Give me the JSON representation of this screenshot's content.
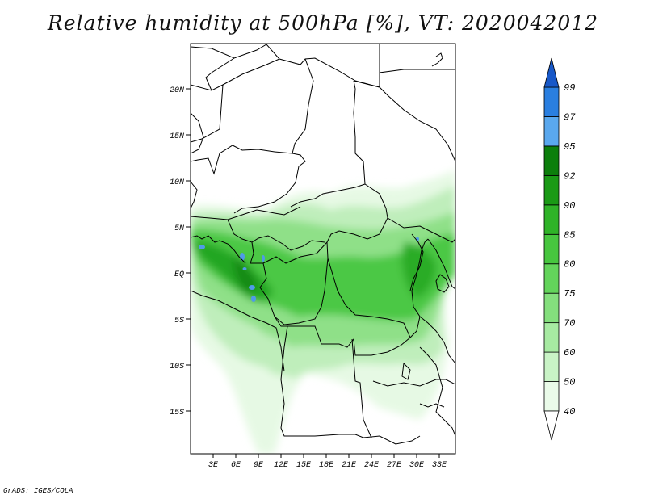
{
  "title": "Relative humidity at 500hPa [%], VT: 2020042012",
  "credit": "GrADS: IGES/COLA",
  "map": {
    "lat_labels": [
      "20N",
      "15N",
      "10N",
      "5N",
      "EQ",
      "5S",
      "10S",
      "15S"
    ],
    "lon_labels": [
      "3E",
      "6E",
      "9E",
      "12E",
      "15E",
      "18E",
      "21E",
      "24E",
      "27E",
      "30E",
      "33E"
    ]
  },
  "colorbar": {
    "levels": [
      "40",
      "50",
      "60",
      "70",
      "75",
      "80",
      "85",
      "90",
      "92",
      "95",
      "97",
      "99"
    ],
    "colors": [
      "#eafbe9",
      "#c9f3c6",
      "#a7eaa2",
      "#84df7d",
      "#63d45b",
      "#47c63f",
      "#2fb328",
      "#1a9a16",
      "#0c7f0c",
      "#5aa8ee",
      "#2a7fe0",
      "#1858c8"
    ]
  }
}
